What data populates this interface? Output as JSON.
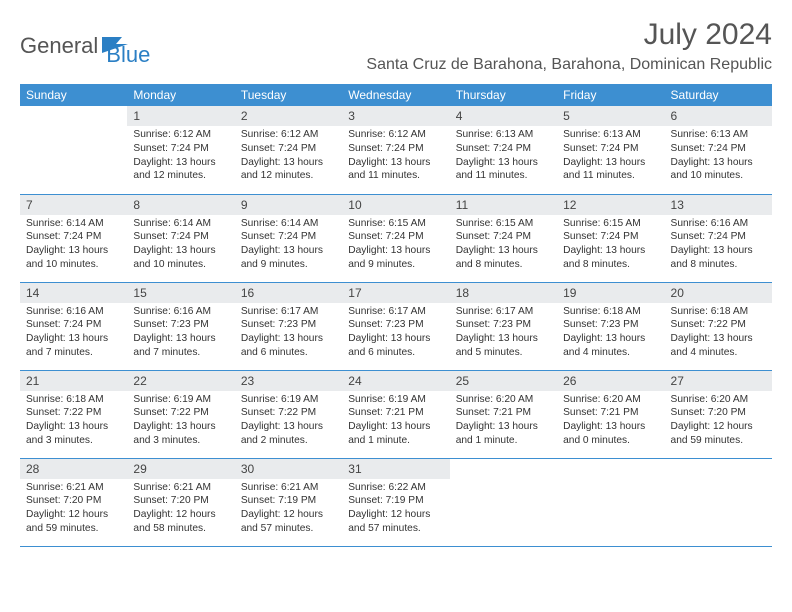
{
  "brand": {
    "part1": "General",
    "part2": "Blue"
  },
  "title": "July 2024",
  "location": "Santa Cruz de Barahona, Barahona, Dominican Republic",
  "colors": {
    "header_bg": "#3d8fd1",
    "header_text": "#ffffff",
    "daynum_bg": "#e9ebed",
    "row_border": "#3d8fd1",
    "brand_gray": "#555555",
    "brand_blue": "#2b7fc4",
    "body_text": "#333333"
  },
  "weekdays": [
    "Sunday",
    "Monday",
    "Tuesday",
    "Wednesday",
    "Thursday",
    "Friday",
    "Saturday"
  ],
  "layout": {
    "first_day_col": 1,
    "days_in_month": 31
  },
  "days": [
    {
      "n": 1,
      "sunrise": "6:12 AM",
      "sunset": "7:24 PM",
      "daylight": "13 hours and 12 minutes."
    },
    {
      "n": 2,
      "sunrise": "6:12 AM",
      "sunset": "7:24 PM",
      "daylight": "13 hours and 12 minutes."
    },
    {
      "n": 3,
      "sunrise": "6:12 AM",
      "sunset": "7:24 PM",
      "daylight": "13 hours and 11 minutes."
    },
    {
      "n": 4,
      "sunrise": "6:13 AM",
      "sunset": "7:24 PM",
      "daylight": "13 hours and 11 minutes."
    },
    {
      "n": 5,
      "sunrise": "6:13 AM",
      "sunset": "7:24 PM",
      "daylight": "13 hours and 11 minutes."
    },
    {
      "n": 6,
      "sunrise": "6:13 AM",
      "sunset": "7:24 PM",
      "daylight": "13 hours and 10 minutes."
    },
    {
      "n": 7,
      "sunrise": "6:14 AM",
      "sunset": "7:24 PM",
      "daylight": "13 hours and 10 minutes."
    },
    {
      "n": 8,
      "sunrise": "6:14 AM",
      "sunset": "7:24 PM",
      "daylight": "13 hours and 10 minutes."
    },
    {
      "n": 9,
      "sunrise": "6:14 AM",
      "sunset": "7:24 PM",
      "daylight": "13 hours and 9 minutes."
    },
    {
      "n": 10,
      "sunrise": "6:15 AM",
      "sunset": "7:24 PM",
      "daylight": "13 hours and 9 minutes."
    },
    {
      "n": 11,
      "sunrise": "6:15 AM",
      "sunset": "7:24 PM",
      "daylight": "13 hours and 8 minutes."
    },
    {
      "n": 12,
      "sunrise": "6:15 AM",
      "sunset": "7:24 PM",
      "daylight": "13 hours and 8 minutes."
    },
    {
      "n": 13,
      "sunrise": "6:16 AM",
      "sunset": "7:24 PM",
      "daylight": "13 hours and 8 minutes."
    },
    {
      "n": 14,
      "sunrise": "6:16 AM",
      "sunset": "7:24 PM",
      "daylight": "13 hours and 7 minutes."
    },
    {
      "n": 15,
      "sunrise": "6:16 AM",
      "sunset": "7:23 PM",
      "daylight": "13 hours and 7 minutes."
    },
    {
      "n": 16,
      "sunrise": "6:17 AM",
      "sunset": "7:23 PM",
      "daylight": "13 hours and 6 minutes."
    },
    {
      "n": 17,
      "sunrise": "6:17 AM",
      "sunset": "7:23 PM",
      "daylight": "13 hours and 6 minutes."
    },
    {
      "n": 18,
      "sunrise": "6:17 AM",
      "sunset": "7:23 PM",
      "daylight": "13 hours and 5 minutes."
    },
    {
      "n": 19,
      "sunrise": "6:18 AM",
      "sunset": "7:23 PM",
      "daylight": "13 hours and 4 minutes."
    },
    {
      "n": 20,
      "sunrise": "6:18 AM",
      "sunset": "7:22 PM",
      "daylight": "13 hours and 4 minutes."
    },
    {
      "n": 21,
      "sunrise": "6:18 AM",
      "sunset": "7:22 PM",
      "daylight": "13 hours and 3 minutes."
    },
    {
      "n": 22,
      "sunrise": "6:19 AM",
      "sunset": "7:22 PM",
      "daylight": "13 hours and 3 minutes."
    },
    {
      "n": 23,
      "sunrise": "6:19 AM",
      "sunset": "7:22 PM",
      "daylight": "13 hours and 2 minutes."
    },
    {
      "n": 24,
      "sunrise": "6:19 AM",
      "sunset": "7:21 PM",
      "daylight": "13 hours and 1 minute."
    },
    {
      "n": 25,
      "sunrise": "6:20 AM",
      "sunset": "7:21 PM",
      "daylight": "13 hours and 1 minute."
    },
    {
      "n": 26,
      "sunrise": "6:20 AM",
      "sunset": "7:21 PM",
      "daylight": "13 hours and 0 minutes."
    },
    {
      "n": 27,
      "sunrise": "6:20 AM",
      "sunset": "7:20 PM",
      "daylight": "12 hours and 59 minutes."
    },
    {
      "n": 28,
      "sunrise": "6:21 AM",
      "sunset": "7:20 PM",
      "daylight": "12 hours and 59 minutes."
    },
    {
      "n": 29,
      "sunrise": "6:21 AM",
      "sunset": "7:20 PM",
      "daylight": "12 hours and 58 minutes."
    },
    {
      "n": 30,
      "sunrise": "6:21 AM",
      "sunset": "7:19 PM",
      "daylight": "12 hours and 57 minutes."
    },
    {
      "n": 31,
      "sunrise": "6:22 AM",
      "sunset": "7:19 PM",
      "daylight": "12 hours and 57 minutes."
    }
  ],
  "labels": {
    "sunrise": "Sunrise:",
    "sunset": "Sunset:",
    "daylight": "Daylight:"
  }
}
